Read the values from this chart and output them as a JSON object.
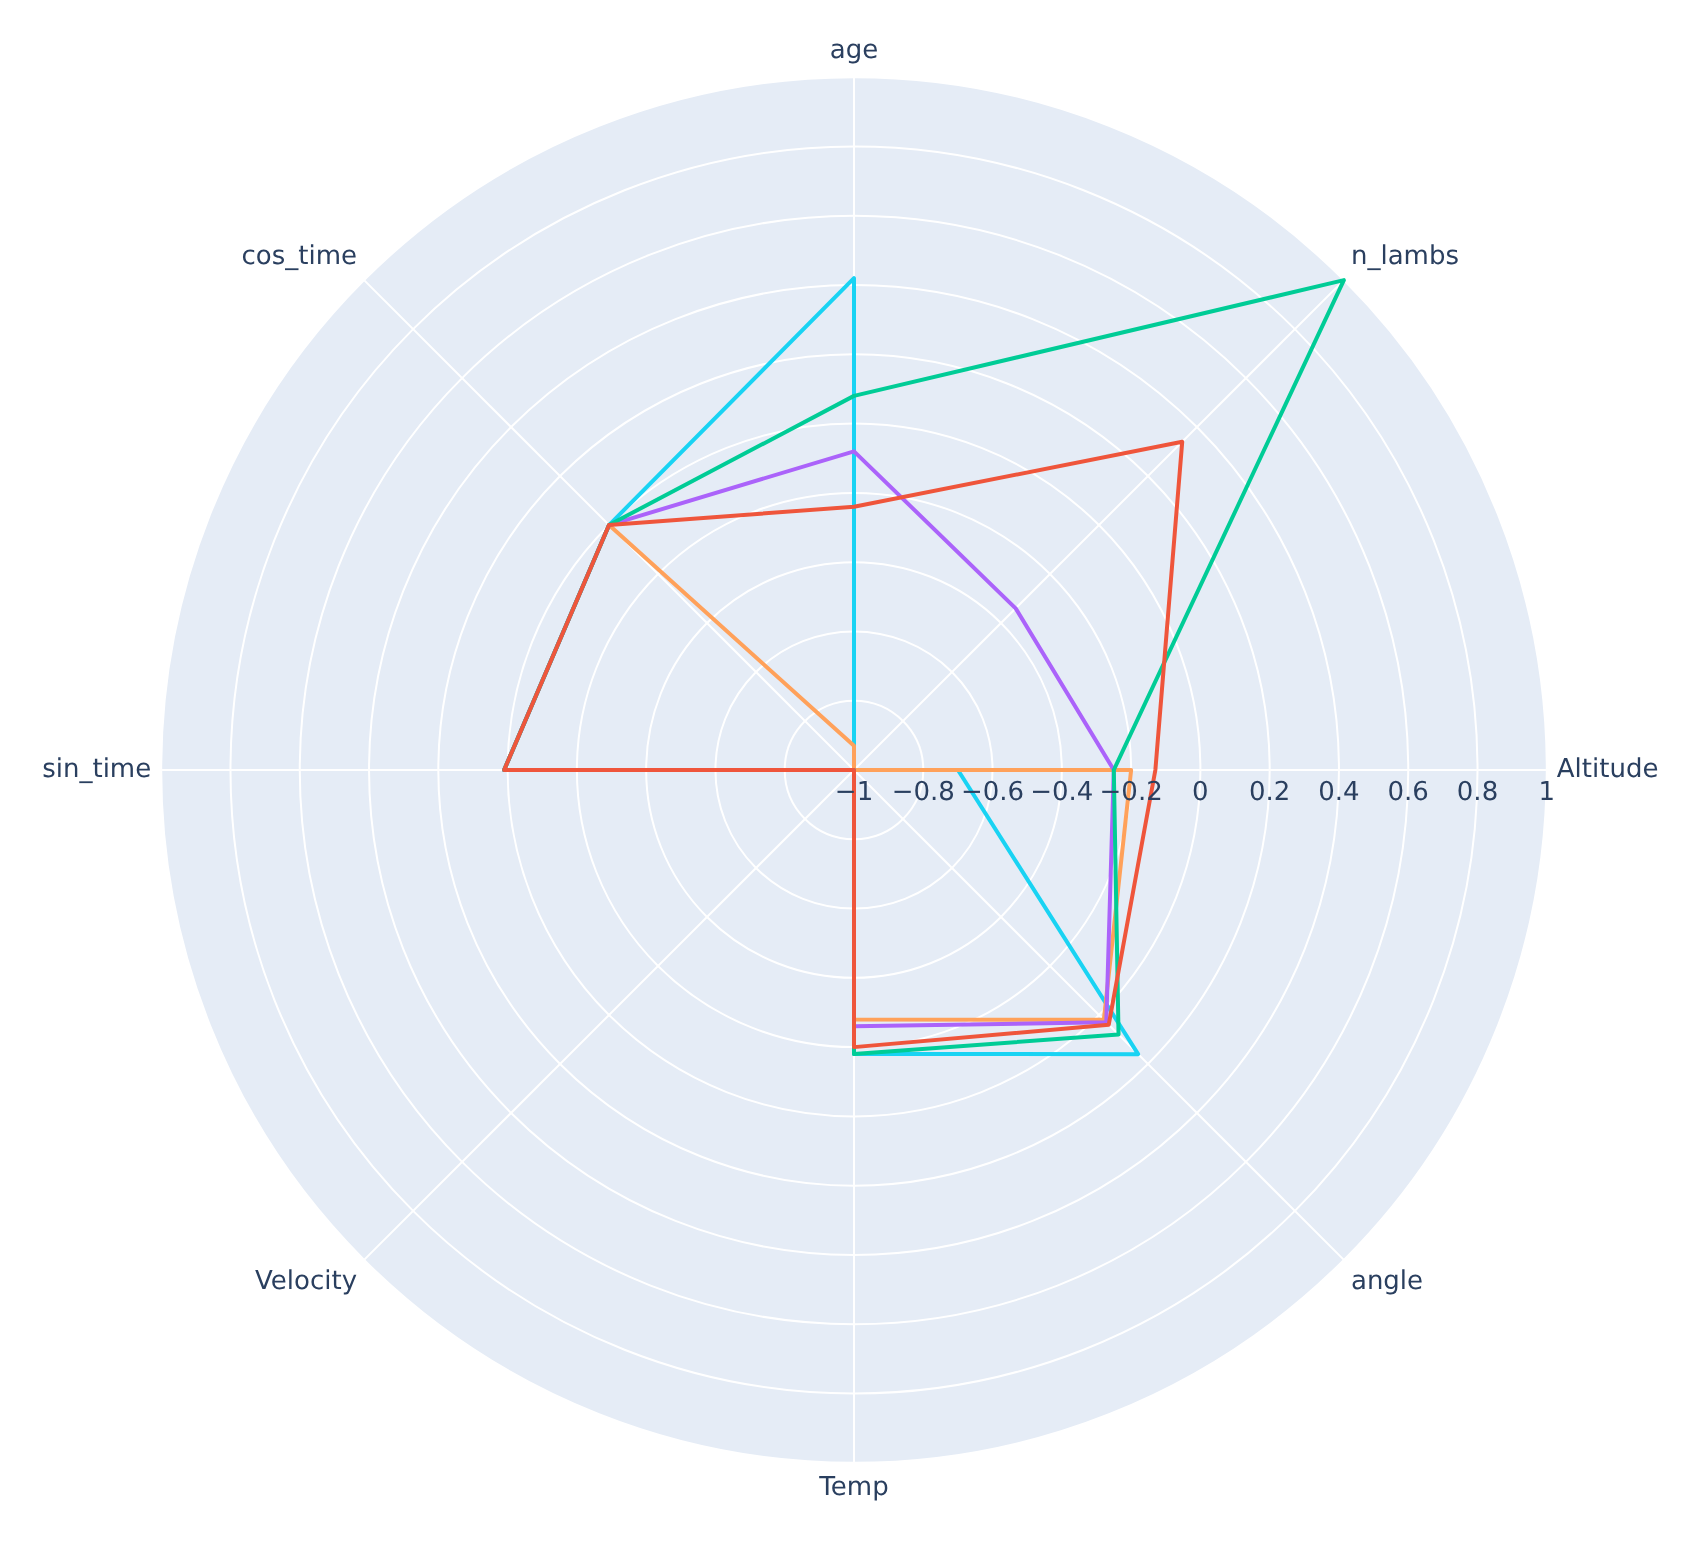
{
  "chart_data": {
    "type": "radar",
    "categories": [
      "age",
      "n_lambs",
      "Altitude",
      "angle",
      "Temp",
      "Velocity",
      "sin_time",
      "cos_time"
    ],
    "ylim": [
      -1,
      1
    ],
    "yticks": [
      -1,
      -0.8,
      -0.6,
      -0.4,
      -0.2,
      0,
      0.2,
      0.4,
      0.6,
      0.8,
      1
    ],
    "grid": true,
    "legend": false,
    "marker": "none",
    "series": [
      {
        "color": "#ef553b",
        "values": [
          -0.24,
          0.34,
          -0.13,
          0.04,
          -0.2,
          -1,
          0.01,
          0
        ]
      },
      {
        "color": "#00cc96",
        "values": [
          0.08,
          1.0,
          -0.25,
          0.08,
          -0.18,
          -1,
          0.01,
          0
        ]
      },
      {
        "color": "#ab63fa",
        "values": [
          -0.08,
          -0.34,
          -0.25,
          0.03,
          -0.26,
          -1,
          0.01,
          0
        ]
      },
      {
        "color": "#ffa15a",
        "values": [
          -0.93,
          -1,
          -0.2,
          0.02,
          -0.28,
          -1,
          0.01,
          0
        ]
      },
      {
        "color": "#19d3f3",
        "values": [
          0.42,
          -1,
          -0.7,
          0.16,
          -0.18,
          -1,
          0.01,
          0
        ]
      }
    ]
  }
}
